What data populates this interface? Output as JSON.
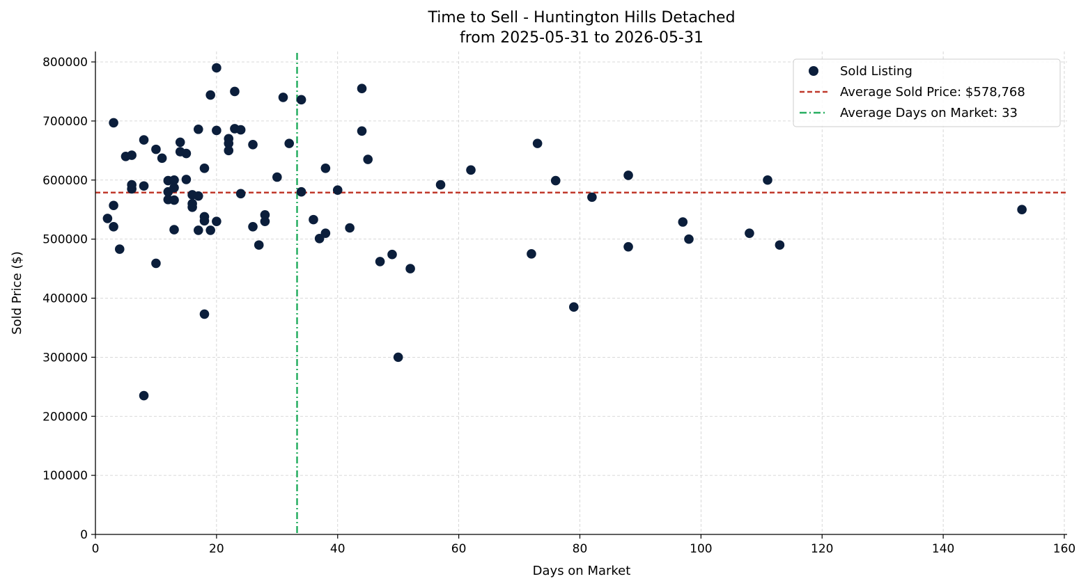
{
  "chart_data": {
    "type": "scatter",
    "title": "Time to Sell - Huntington Hills Detached",
    "subtitle": "from 2025-05-31 to 2026-05-31",
    "xlabel": "Days on Market",
    "ylabel": "Sold Price ($)",
    "xlim": [
      0,
      160
    ],
    "ylim": [
      0,
      820000
    ],
    "xticks": [
      0,
      20,
      40,
      60,
      80,
      100,
      120,
      140,
      160
    ],
    "yticks": [
      0,
      100000,
      200000,
      300000,
      400000,
      500000,
      600000,
      700000,
      800000
    ],
    "grid": true,
    "legend_position": "top-right",
    "colors": {
      "points": "#0b1e3b",
      "avg_price_line": "#c0392b",
      "avg_days_line": "#27ae60"
    },
    "series": [
      {
        "name": "Sold Listing",
        "x": [
          2,
          3,
          3,
          3,
          4,
          5,
          6,
          6,
          6,
          8,
          8,
          8,
          10,
          10,
          11,
          12,
          12,
          12,
          13,
          13,
          13,
          13,
          14,
          14,
          15,
          15,
          16,
          16,
          16,
          17,
          17,
          17,
          18,
          18,
          18,
          18,
          19,
          19,
          20,
          20,
          20,
          22,
          22,
          22,
          23,
          23,
          24,
          24,
          26,
          26,
          27,
          28,
          28,
          30,
          31,
          32,
          34,
          34,
          36,
          37,
          38,
          38,
          40,
          42,
          44,
          44,
          45,
          47,
          49,
          50,
          52,
          57,
          62,
          72,
          73,
          76,
          79,
          82,
          88,
          88,
          97,
          98,
          108,
          111,
          113,
          153
        ],
        "y": [
          535000,
          557000,
          521000,
          697000,
          483000,
          640000,
          642000,
          592000,
          585000,
          668000,
          590000,
          235000,
          652000,
          459000,
          637000,
          599000,
          580000,
          567000,
          600000,
          587000,
          566000,
          516000,
          664000,
          648000,
          645000,
          601000,
          575000,
          560000,
          554000,
          686000,
          573000,
          515000,
          620000,
          538000,
          531000,
          373000,
          744000,
          515000,
          790000,
          684000,
          530000,
          670000,
          662000,
          650000,
          750000,
          687000,
          685000,
          577000,
          660000,
          521000,
          490000,
          541000,
          530000,
          605000,
          740000,
          662000,
          736000,
          580000,
          533000,
          501000,
          620000,
          510000,
          583000,
          519000,
          755000,
          683000,
          635000,
          462000,
          474000,
          300000,
          450000,
          592000,
          617000,
          475000,
          662000,
          599000,
          385000,
          571000,
          608000,
          487000,
          529000,
          500000,
          510000,
          600000,
          490000,
          550000
        ]
      }
    ],
    "reference_lines": [
      {
        "name": "Average Sold Price: $578,768",
        "orientation": "horizontal",
        "value": 578768,
        "style": "dashed"
      },
      {
        "name": "Average Days on Market: 33",
        "orientation": "vertical",
        "value": 33.3,
        "style": "dashdot"
      }
    ]
  }
}
